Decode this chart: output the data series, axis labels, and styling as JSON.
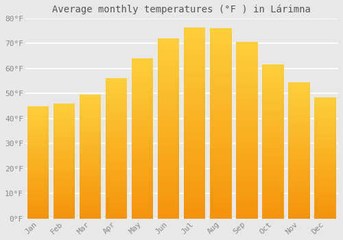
{
  "title": "Average monthly temperatures (°F ) in Lárimna",
  "months": [
    "Jan",
    "Feb",
    "Mar",
    "Apr",
    "May",
    "Jun",
    "Jul",
    "Aug",
    "Sep",
    "Oct",
    "Nov",
    "Dec"
  ],
  "values": [
    45,
    46,
    49.5,
    56,
    64,
    72,
    76.5,
    76,
    70.5,
    61.5,
    54.5,
    48.5
  ],
  "bar_color_top": "#FDCF3A",
  "bar_color_bottom": "#F5930A",
  "ylim": [
    0,
    80
  ],
  "yticks": [
    0,
    10,
    20,
    30,
    40,
    50,
    60,
    70,
    80
  ],
  "ytick_labels": [
    "0°F",
    "10°F",
    "20°F",
    "30°F",
    "40°F",
    "50°F",
    "60°F",
    "70°F",
    "80°F"
  ],
  "background_color": "#e8e8e8",
  "grid_color": "#ffffff",
  "title_fontsize": 10,
  "tick_fontsize": 8,
  "tick_color": "#888888"
}
